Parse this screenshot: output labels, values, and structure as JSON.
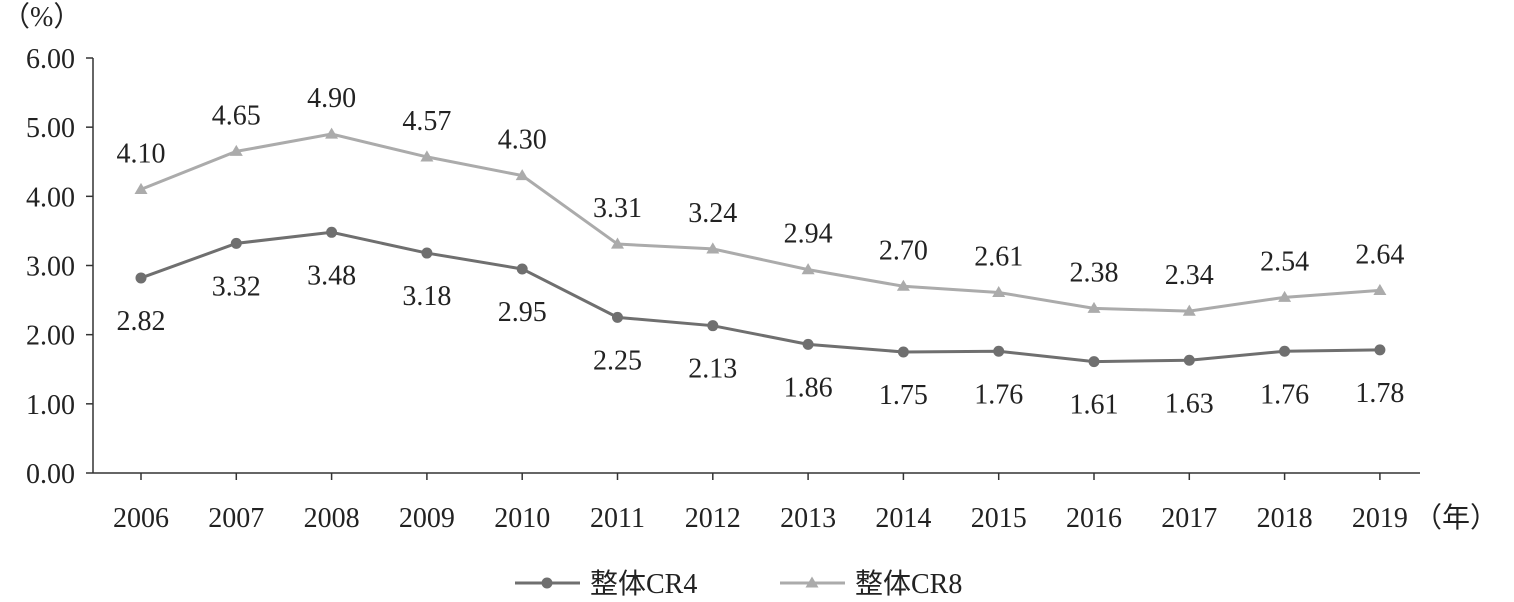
{
  "chart_data": {
    "type": "line",
    "title": "",
    "ylabel": "（%）",
    "xlabel": "（年）",
    "x": [
      "2006",
      "2007",
      "2008",
      "2009",
      "2010",
      "2011",
      "2012",
      "2013",
      "2014",
      "2015",
      "2016",
      "2017",
      "2018",
      "2019"
    ],
    "yticks": [
      "0.00",
      "1.00",
      "2.00",
      "3.00",
      "4.00",
      "5.00",
      "6.00"
    ],
    "ylim": [
      0,
      6
    ],
    "grid": false,
    "legend_position": "bottom-center",
    "series": [
      {
        "name": "整体CR4",
        "marker": "circle",
        "color": "#6f6f6f",
        "label_position": "below",
        "values": [
          2.82,
          3.32,
          3.48,
          3.18,
          2.95,
          2.25,
          2.13,
          1.86,
          1.75,
          1.76,
          1.61,
          1.63,
          1.76,
          1.78
        ],
        "labels": [
          "2.82",
          "3.32",
          "3.48",
          "3.18",
          "2.95",
          "2.25",
          "2.13",
          "1.86",
          "1.75",
          "1.76",
          "1.61",
          "1.63",
          "1.76",
          "1.78"
        ]
      },
      {
        "name": "整体CR8",
        "marker": "triangle",
        "color": "#ababab",
        "label_position": "above",
        "values": [
          4.1,
          4.65,
          4.9,
          4.57,
          4.3,
          3.31,
          3.24,
          2.94,
          2.7,
          2.61,
          2.38,
          2.34,
          2.54,
          2.64
        ],
        "labels": [
          "4.10",
          "4.65",
          "4.90",
          "4.57",
          "4.30",
          "3.31",
          "3.24",
          "2.94",
          "2.70",
          "2.61",
          "2.38",
          "2.34",
          "2.54",
          "2.64"
        ]
      }
    ]
  }
}
